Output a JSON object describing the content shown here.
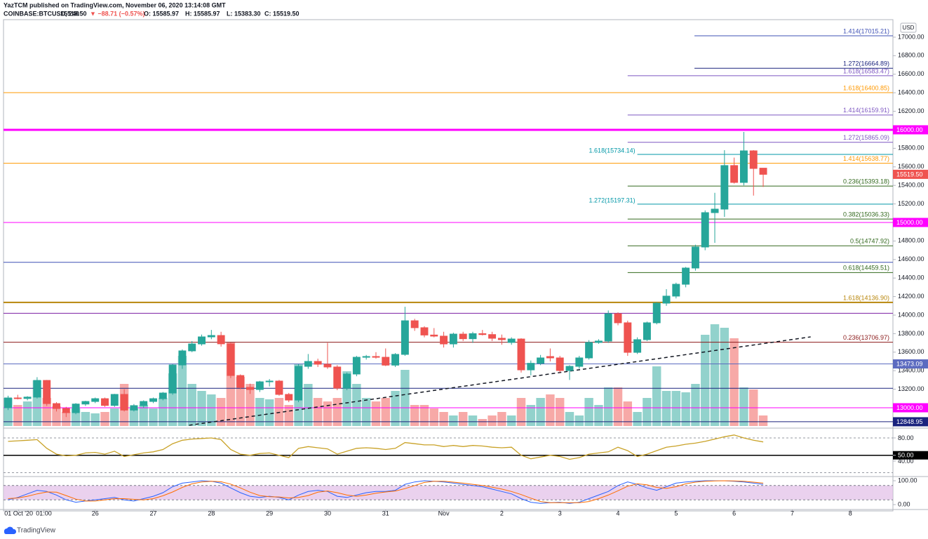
{
  "header": {
    "publisher": "YazTCM published on TradingView.com, November 06, 2020 13:14:08 GMT",
    "symbol": "COINBASE:BTCUSD, 240",
    "last": "15519.50",
    "change": "▼ −88.71 (−0.57%)",
    "ohlc": [
      "O: 15585.97",
      "H: 15585.97",
      "L: 15383.30",
      "C: 15519.50"
    ]
  },
  "currency": "USD",
  "brand": "TradingView",
  "chart_data": {
    "type": "candlestick",
    "up_color": "#26a69a",
    "down_color": "#ef5350",
    "candles": [
      [
        13000,
        13130,
        12975,
        13106
      ],
      [
        13106,
        13140,
        13090,
        13100
      ],
      [
        13100,
        13125,
        13080,
        13115
      ],
      [
        13115,
        13330,
        13100,
        13295
      ],
      [
        13295,
        13300,
        13020,
        13045
      ],
      [
        13045,
        13060,
        12960,
        12992
      ],
      [
        12992,
        13010,
        12900,
        12947
      ],
      [
        12947,
        13050,
        12930,
        13040
      ],
      [
        13040,
        13075,
        13020,
        13068
      ],
      [
        13068,
        13110,
        13050,
        13098
      ],
      [
        13098,
        13110,
        13010,
        13025
      ],
      [
        13025,
        13150,
        13010,
        13144
      ],
      [
        13144,
        13200,
        12960,
        12975
      ],
      [
        12975,
        13040,
        12960,
        13023
      ],
      [
        13023,
        13080,
        13000,
        13068
      ],
      [
        13068,
        13110,
        13050,
        13098
      ],
      [
        13098,
        13170,
        13080,
        13159
      ],
      [
        13159,
        13470,
        13140,
        13462
      ],
      [
        13462,
        13630,
        13420,
        13614
      ],
      [
        13614,
        13720,
        13600,
        13689
      ],
      [
        13689,
        13790,
        13670,
        13765
      ],
      [
        13765,
        13840,
        13740,
        13780
      ],
      [
        13780,
        13820,
        13660,
        13690
      ],
      [
        13690,
        13700,
        13320,
        13348
      ],
      [
        13348,
        13360,
        13200,
        13220
      ],
      [
        13220,
        13260,
        13150,
        13197
      ],
      [
        13197,
        13290,
        13170,
        13280
      ],
      [
        13280,
        13310,
        13230,
        13288
      ],
      [
        13288,
        13300,
        13130,
        13144
      ],
      [
        13144,
        13160,
        13060,
        13083
      ],
      [
        13083,
        13470,
        13060,
        13447
      ],
      [
        13447,
        13580,
        13420,
        13500
      ],
      [
        13500,
        13530,
        13440,
        13470
      ],
      [
        13470,
        13700,
        13420,
        13440
      ],
      [
        13440,
        13460,
        13190,
        13212
      ],
      [
        13212,
        13380,
        13190,
        13364
      ],
      [
        13364,
        13560,
        13340,
        13545
      ],
      [
        13545,
        13570,
        13520,
        13553
      ],
      [
        13553,
        13600,
        13530,
        13545
      ],
      [
        13545,
        13640,
        13450,
        13460
      ],
      [
        13460,
        13590,
        13440,
        13576
      ],
      [
        13576,
        14090,
        13560,
        13939
      ],
      [
        13939,
        13960,
        13830,
        13864
      ],
      [
        13864,
        13880,
        13760,
        13785
      ],
      [
        13785,
        13860,
        13760,
        13773
      ],
      [
        13773,
        13820,
        13650,
        13689
      ],
      [
        13689,
        13810,
        13650,
        13795
      ],
      [
        13795,
        13820,
        13720,
        13745
      ],
      [
        13745,
        13820,
        13700,
        13800
      ],
      [
        13800,
        13840,
        13780,
        13790
      ],
      [
        13790,
        13820,
        13720,
        13750
      ],
      [
        13750,
        13790,
        13680,
        13735
      ],
      [
        13705,
        13760,
        13680,
        13742
      ],
      [
        13742,
        13750,
        13380,
        13409
      ],
      [
        13409,
        13510,
        13350,
        13480
      ],
      [
        13480,
        13570,
        13460,
        13538
      ],
      [
        13553,
        13640,
        13500,
        13538
      ],
      [
        13538,
        13560,
        13380,
        13402
      ],
      [
        13402,
        13460,
        13300,
        13447
      ],
      [
        13447,
        13560,
        13420,
        13538
      ],
      [
        13538,
        13730,
        13520,
        13705
      ],
      [
        13705,
        13740,
        13690,
        13720
      ],
      [
        13720,
        14050,
        13700,
        14015
      ],
      [
        14015,
        14030,
        13890,
        13917
      ],
      [
        13917,
        13940,
        13560,
        13598
      ],
      [
        13598,
        13760,
        13580,
        13735
      ],
      [
        13735,
        13930,
        13720,
        13917
      ],
      [
        13917,
        14140,
        13900,
        14129
      ],
      [
        14129,
        14280,
        14100,
        14205
      ],
      [
        14205,
        14350,
        14180,
        14333
      ],
      [
        14333,
        14520,
        14300,
        14508
      ],
      [
        14508,
        14760,
        14480,
        14735
      ],
      [
        14735,
        15130,
        14700,
        15106
      ],
      [
        15106,
        15320,
        14780,
        15144
      ],
      [
        15144,
        15780,
        15060,
        15614
      ],
      [
        15614,
        15700,
        15420,
        15432
      ],
      [
        15432,
        15977,
        15400,
        15773
      ],
      [
        15773,
        15780,
        15290,
        15583
      ],
      [
        15585.97,
        15585.97,
        15383.3,
        15519.5
      ]
    ],
    "volume": [
      40,
      30,
      35,
      65,
      40,
      28,
      20,
      25,
      20,
      18,
      20,
      25,
      60,
      25,
      30,
      25,
      40,
      75,
      100,
      60,
      50,
      45,
      40,
      120,
      70,
      60,
      40,
      38,
      40,
      30,
      88,
      60,
      40,
      35,
      40,
      78,
      60,
      40,
      35,
      40,
      50,
      80,
      30,
      30,
      25,
      20,
      15,
      20,
      15,
      10,
      15,
      20,
      15,
      40,
      30,
      40,
      45,
      40,
      20,
      15,
      40,
      30,
      55,
      55,
      35,
      20,
      40,
      85,
      50,
      50,
      48,
      60,
      130,
      145,
      140,
      125,
      55,
      52,
      15
    ],
    "ylim": [
      12803,
      17189
    ],
    "yticks": [
      {
        "value": 13200,
        "label": "13200.00"
      },
      {
        "value": 13400,
        "label": "13400.00"
      },
      {
        "value": 13600,
        "label": "13600.00"
      },
      {
        "value": 13800,
        "label": "13800.00"
      },
      {
        "value": 14000,
        "label": "14000.00"
      },
      {
        "value": 14200,
        "label": "14200.00"
      },
      {
        "value": 14400,
        "label": "14400.00"
      },
      {
        "value": 14600,
        "label": "14600.00"
      },
      {
        "value": 14800,
        "label": "14800.00"
      },
      {
        "value": 15200,
        "label": "15200.00"
      },
      {
        "value": 15400,
        "label": "15400.00"
      },
      {
        "value": 15600,
        "label": "15600.00"
      },
      {
        "value": 15800,
        "label": "15800.00"
      },
      {
        "value": 16200,
        "label": "16200.00"
      },
      {
        "value": 16400,
        "label": "16400.00"
      },
      {
        "value": 16600,
        "label": "16600.00"
      },
      {
        "value": 16800,
        "label": "16800.00"
      },
      {
        "value": 17000,
        "label": "17000.00"
      }
    ],
    "xlim": [
      -0.47,
      91.4
    ],
    "xticks": [
      {
        "value": 1.1,
        "label": "01 Oct '20"
      },
      {
        "value": 3.7,
        "label": "01:00"
      },
      {
        "value": 9,
        "label": "26"
      },
      {
        "value": 15,
        "label": "27"
      },
      {
        "value": 21,
        "label": "28"
      },
      {
        "value": 27,
        "label": "29"
      },
      {
        "value": 33,
        "label": "30"
      },
      {
        "value": 39,
        "label": "31"
      },
      {
        "value": 45,
        "label": "Nov"
      },
      {
        "value": 51,
        "label": "2"
      },
      {
        "value": 57,
        "label": "3"
      },
      {
        "value": 63,
        "label": "4"
      },
      {
        "value": 69,
        "label": "5"
      },
      {
        "value": 75,
        "label": "6"
      },
      {
        "value": 81,
        "label": "7"
      },
      {
        "value": 87,
        "label": "8"
      }
    ],
    "levels": [
      {
        "price": 17015.21,
        "label": "1.414(17015.21)",
        "color": "#3f51b5",
        "x0": 70.9,
        "side": "right"
      },
      {
        "price": 16664.89,
        "label": "1.272(16664.89)",
        "color": "#1a237e",
        "x0": 70.9,
        "side": "right"
      },
      {
        "price": 16583.47,
        "label": "1.618(16583.47)",
        "color": "#7e57c2",
        "x0": 64,
        "side": "right"
      },
      {
        "price": 16400.85,
        "label": "1.618(16400.85)",
        "color": "#ff9800",
        "side": "right"
      },
      {
        "price": 16159.91,
        "label": "1.414(16159.91)",
        "color": "#7e57c2",
        "x0": 64,
        "side": "right"
      },
      {
        "price": 16000,
        "color": "#ff00ff",
        "width": 3,
        "axis_label": "16000.00"
      },
      {
        "price": 15865.09,
        "label": "1.272(15865.09)",
        "color": "#7e57c2",
        "x0": 64,
        "side": "right"
      },
      {
        "price": 15734.14,
        "label": "1.618(15734.14)",
        "color": "#0097a7",
        "x0": 65,
        "side": "left"
      },
      {
        "price": 15638.77,
        "label": "1.414(15638.77)",
        "color": "#ff9800",
        "side": "right"
      },
      {
        "price": 15393.18,
        "label": "0.236(15393.18)",
        "color": "#33691e",
        "x0": 64,
        "side": "right"
      },
      {
        "price": 15197.31,
        "label": "1.272(15197.31)",
        "color": "#0097a7",
        "x0": 65,
        "side": "left"
      },
      {
        "price": 15036.33,
        "label": "0.382(15036.33)",
        "color": "#33691e",
        "x0": 64,
        "side": "right"
      },
      {
        "price": 15000,
        "color": "#ff00ff",
        "axis_label": "15000.00"
      },
      {
        "price": 14747.92,
        "label": "0.5(14747.92)",
        "color": "#33691e",
        "x0": 64,
        "side": "right"
      },
      {
        "price": 14570,
        "color": "#3f51b5"
      },
      {
        "price": 14459.51,
        "label": "0.618(14459.51)",
        "color": "#33691e",
        "x0": 64,
        "side": "right"
      },
      {
        "price": 14136.9,
        "label": "1.618(14136.90)",
        "color": "#b8860b",
        "width": 2,
        "side": "right"
      },
      {
        "price": 14020,
        "color": "#7b1fa2"
      },
      {
        "price": 13706.97,
        "label": "0.236(13706.97)",
        "color": "#8b1a1a",
        "side": "right"
      },
      {
        "price": 13473.09,
        "color": "#5c6bc0",
        "axis_label": "13473.09"
      },
      {
        "price": 13210,
        "color": "#1a237e"
      },
      {
        "price": 13000,
        "color": "#ff00ff",
        "axis_label": "13000.00"
      },
      {
        "price": 12848.95,
        "color": "#1a237e",
        "axis_label": "12848.95"
      }
    ],
    "last_price": {
      "value": 15519.5,
      "label": "15519.50"
    },
    "trendline": {
      "from": [
        18.7,
        12811
      ],
      "to": [
        82.9,
        13765
      ]
    },
    "rsi": {
      "color": "#c9a227",
      "ylim": [
        14.5,
        94.5
      ],
      "yticks": [
        {
          "value": 80,
          "label": "80.00"
        },
        {
          "value": 50,
          "label": "50.00"
        },
        {
          "value": 40,
          "label": "40.00"
        }
      ],
      "hline": 50,
      "bands": [
        80,
        20
      ],
      "values": [
        74,
        75,
        76,
        77,
        62,
        52,
        49,
        50,
        54,
        55,
        52,
        57,
        48,
        51,
        54,
        56,
        60,
        70,
        76,
        78,
        79,
        80,
        77,
        60,
        52,
        50,
        53,
        54,
        50,
        46,
        62,
        65,
        63,
        61,
        52,
        57,
        62,
        63,
        62,
        60,
        62,
        72,
        70,
        68,
        68,
        65,
        67,
        65,
        67,
        66,
        64,
        63,
        64,
        50,
        44,
        47,
        50,
        48,
        43,
        46,
        52,
        54,
        56,
        64,
        58,
        48,
        52,
        58,
        64,
        66,
        69,
        71,
        74,
        78,
        82,
        85,
        80,
        76,
        73
      ]
    },
    "stoch": {
      "ylim": [
        -26.5,
        114.7
      ],
      "yticks": [
        {
          "value": 100,
          "label": "100.00"
        },
        {
          "value": 0,
          "label": "0.00"
        }
      ],
      "bands": [
        80,
        20
      ],
      "series": [
        {
          "color": "#2962ff",
          "values": [
            20,
            30,
            45,
            60,
            55,
            40,
            20,
            10,
            15,
            20,
            25,
            30,
            20,
            15,
            25,
            35,
            50,
            75,
            90,
            95,
            100,
            98,
            90,
            70,
            50,
            35,
            30,
            35,
            30,
            20,
            40,
            55,
            60,
            55,
            35,
            30,
            40,
            50,
            55,
            55,
            60,
            85,
            95,
            100,
            98,
            95,
            90,
            85,
            80,
            75,
            65,
            55,
            45,
            25,
            10,
            5,
            8,
            10,
            5,
            10,
            25,
            40,
            55,
            80,
            95,
            85,
            70,
            60,
            75,
            90,
            95,
            98,
            100,
            100,
            100,
            98,
            95,
            90,
            85
          ]
        },
        {
          "color": "#ff6d00",
          "values": [
            25,
            28,
            35,
            45,
            53,
            52,
            38,
            23,
            15,
            15,
            20,
            25,
            25,
            22,
            20,
            25,
            37,
            53,
            72,
            87,
            95,
            98,
            96,
            86,
            70,
            52,
            38,
            33,
            32,
            28,
            30,
            38,
            52,
            57,
            50,
            40,
            35,
            40,
            48,
            53,
            57,
            67,
            80,
            93,
            98,
            98,
            94,
            90,
            85,
            80,
            73,
            65,
            55,
            42,
            27,
            13,
            8,
            8,
            8,
            8,
            13,
            25,
            40,
            58,
            77,
            87,
            83,
            72,
            68,
            75,
            87,
            94,
            98,
            99,
            100,
            99,
            98,
            94,
            90
          ]
        }
      ]
    }
  }
}
